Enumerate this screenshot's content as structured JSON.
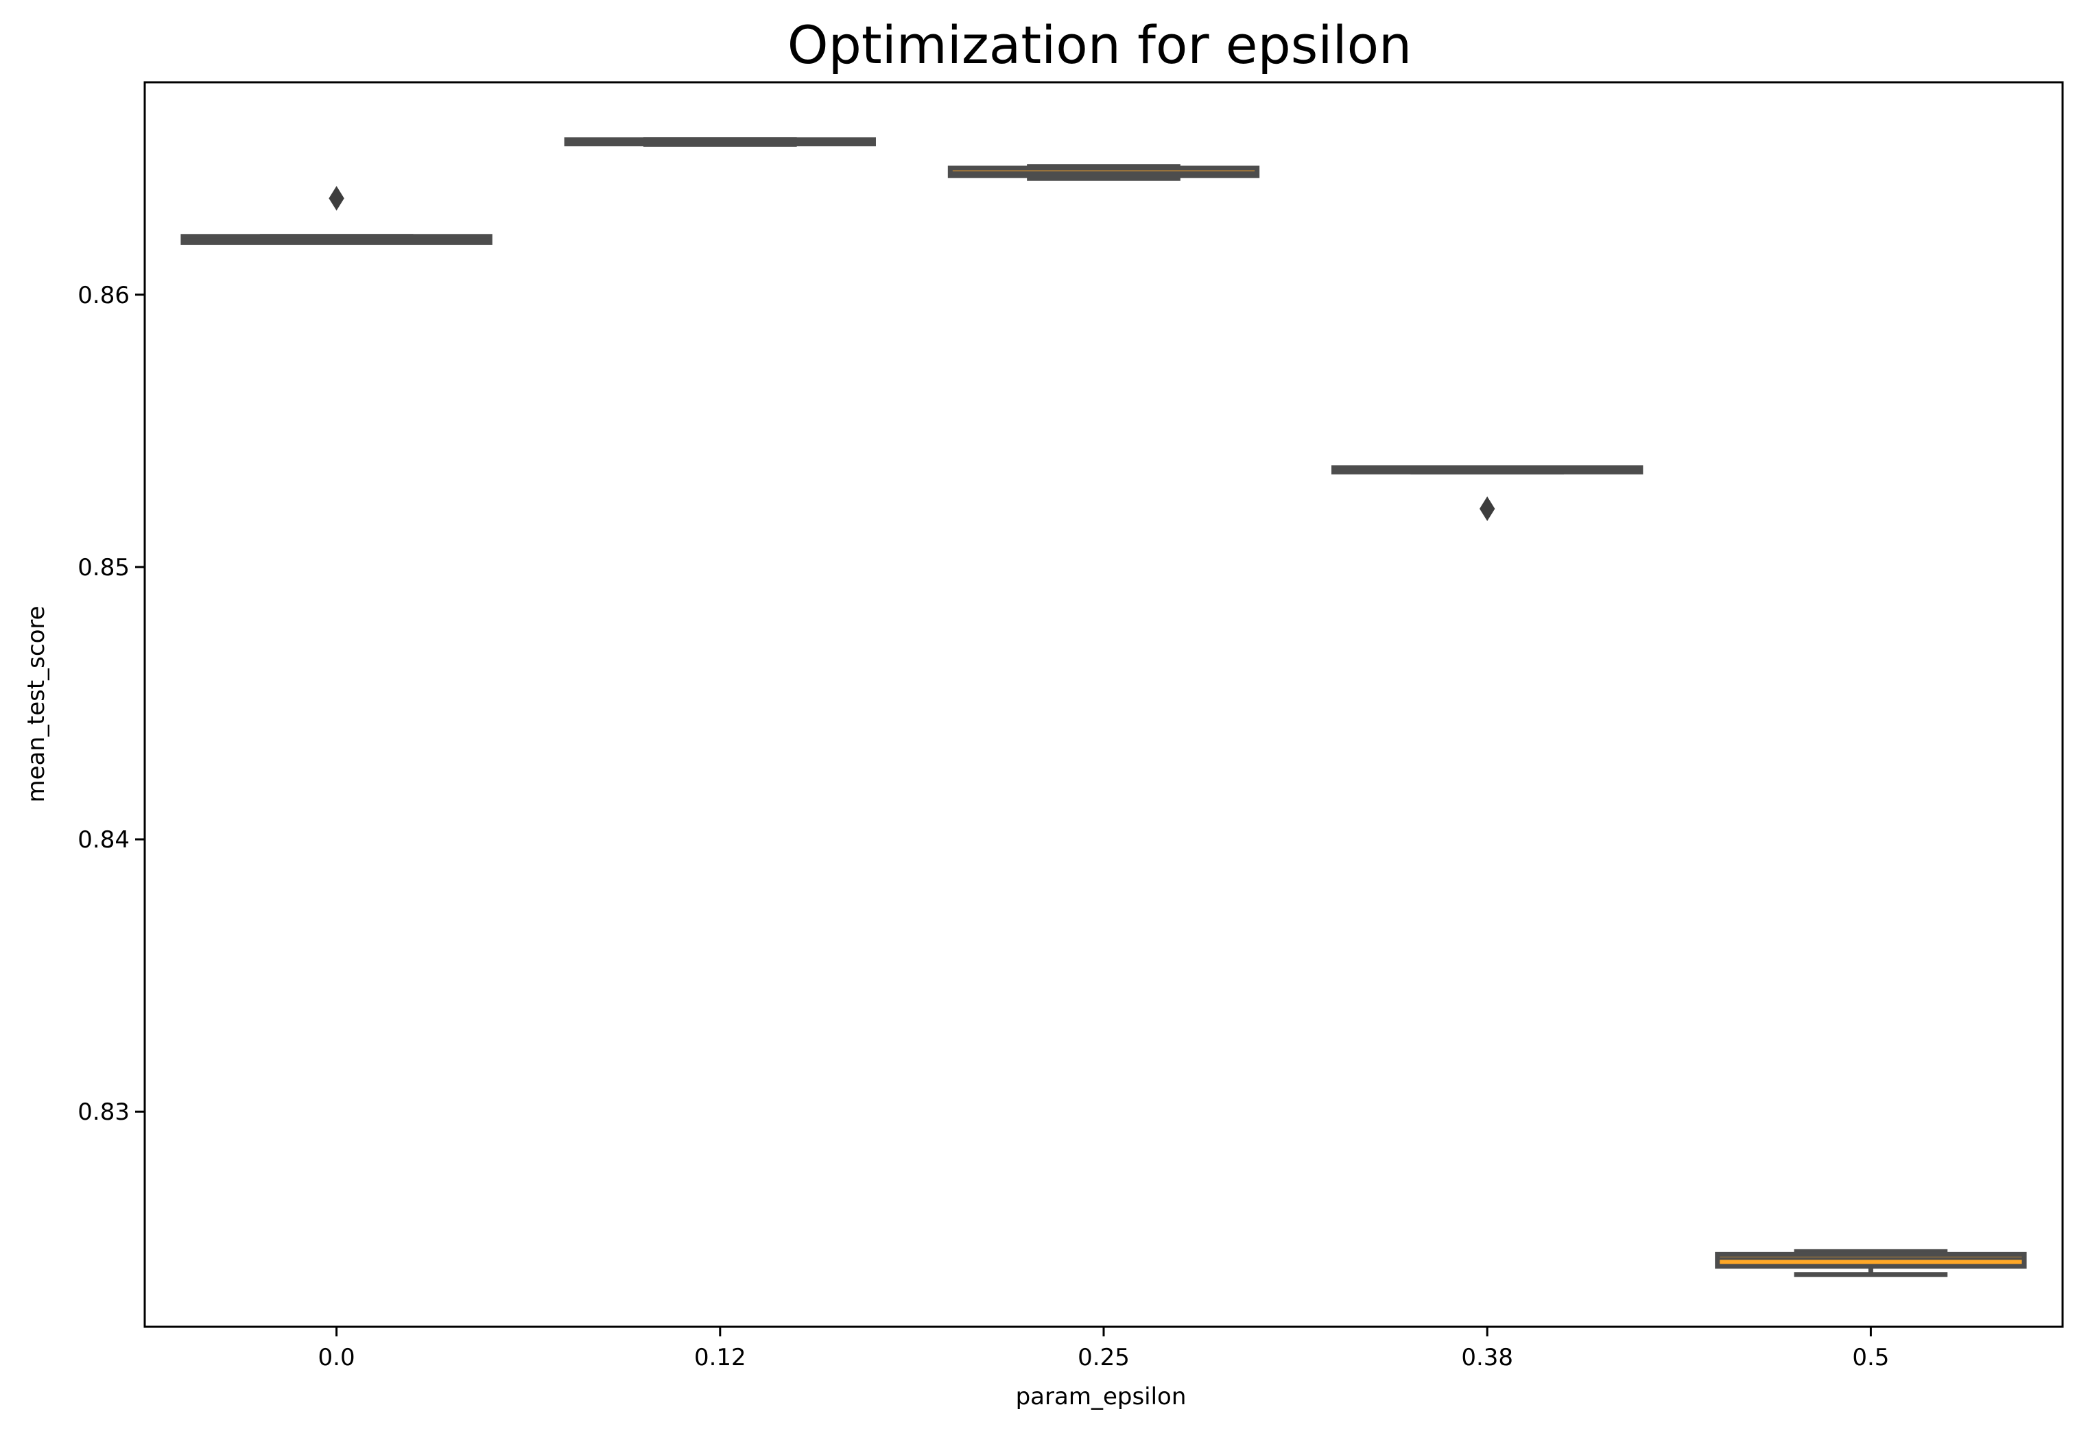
{
  "chart_data": {
    "type": "box",
    "title": "Optimization for epsilon",
    "xlabel": "param_epsilon",
    "ylabel": "mean_test_score",
    "categories": [
      "0.0",
      "0.12",
      "0.25",
      "0.38",
      "0.5"
    ],
    "yticks": [
      0.83,
      0.84,
      0.85,
      0.86
    ],
    "ytick_labels": [
      "0.83",
      "0.84",
      "0.85",
      "0.86"
    ],
    "ylim": [
      0.8221,
      0.8678
    ],
    "grid": false,
    "legend": "none",
    "series": [
      {
        "category": "0.0",
        "whisker_low": 0.86192,
        "q1": 0.86192,
        "median": 0.86203,
        "q3": 0.86214,
        "whisker_high": 0.86214,
        "outliers": [
          0.86354
        ]
      },
      {
        "category": "0.12",
        "whisker_low": 0.86552,
        "q1": 0.86554,
        "median": 0.86556,
        "q3": 0.86569,
        "whisker_high": 0.86569,
        "outliers": []
      },
      {
        "category": "0.25",
        "whisker_low": 0.86427,
        "q1": 0.86437,
        "median": 0.86449,
        "q3": 0.86465,
        "whisker_high": 0.86471,
        "outliers": []
      },
      {
        "category": "0.38",
        "whisker_low": 0.85349,
        "q1": 0.85349,
        "median": 0.85355,
        "q3": 0.85365,
        "whisker_high": 0.85365,
        "outliers": [
          0.85214
        ]
      },
      {
        "category": "0.5",
        "whisker_low": 0.82402,
        "q1": 0.82432,
        "median": 0.82461,
        "q3": 0.82476,
        "whisker_high": 0.82486,
        "outliers": []
      }
    ],
    "colors": {
      "box_edge": "#4d4d4d",
      "box_fill": "#ffa726",
      "median": "#4d4d4d",
      "outlier": "#3d3d3d",
      "axes": "#000000"
    }
  }
}
